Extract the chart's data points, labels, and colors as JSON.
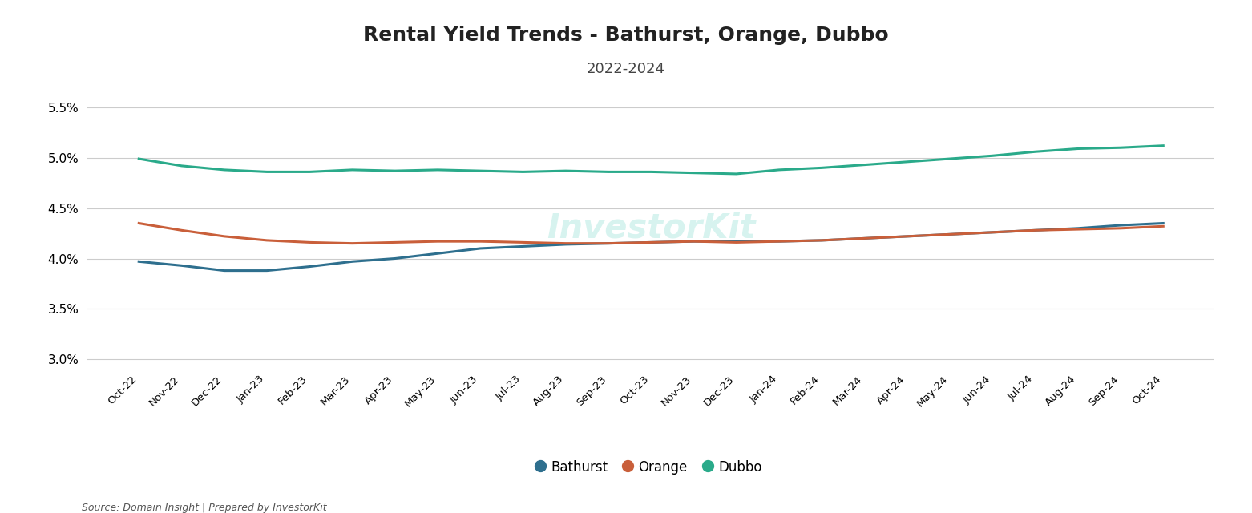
{
  "title": "Rental Yield Trends - Bathurst, Orange, Dubbo",
  "subtitle": "2022-2024",
  "source_text": "Source: Domain Insight | Prepared by InvestorKit",
  "watermark": "InvestorKit",
  "xlabels": [
    "Oct-22",
    "Nov-22",
    "Dec-22",
    "Jan-23",
    "Feb-23",
    "Mar-23",
    "Apr-23",
    "May-23",
    "Jun-23",
    "Jul-23",
    "Aug-23",
    "Sep-23",
    "Oct-23",
    "Nov-23",
    "Dec-23",
    "Jan-24",
    "Feb-24",
    "Mar-24",
    "Apr-24",
    "May-24",
    "Jun-24",
    "Jul-24",
    "Aug-24",
    "Sep-24",
    "Oct-24"
  ],
  "bathurst": [
    3.97,
    3.93,
    3.88,
    3.88,
    3.92,
    3.97,
    4.0,
    4.05,
    4.1,
    4.12,
    4.14,
    4.15,
    4.16,
    4.17,
    4.17,
    4.17,
    4.18,
    4.2,
    4.22,
    4.24,
    4.26,
    4.28,
    4.3,
    4.33,
    4.35
  ],
  "orange": [
    4.35,
    4.28,
    4.22,
    4.18,
    4.16,
    4.15,
    4.16,
    4.17,
    4.17,
    4.16,
    4.15,
    4.15,
    4.16,
    4.17,
    4.16,
    4.17,
    4.18,
    4.2,
    4.22,
    4.24,
    4.26,
    4.28,
    4.29,
    4.3,
    4.32
  ],
  "dubbo": [
    4.99,
    4.92,
    4.88,
    4.86,
    4.86,
    4.88,
    4.87,
    4.88,
    4.87,
    4.86,
    4.87,
    4.86,
    4.86,
    4.85,
    4.84,
    4.88,
    4.9,
    4.93,
    4.96,
    4.99,
    5.02,
    5.06,
    5.09,
    5.1,
    5.12
  ],
  "ylim": [
    2.9,
    5.7
  ],
  "yticks": [
    3.0,
    3.5,
    4.0,
    4.5,
    5.0,
    5.5
  ],
  "colors": {
    "bathurst": "#2e6f8e",
    "orange": "#c95f3a",
    "dubbo": "#2aaa8a"
  },
  "line_width": 2.2,
  "background_color": "#ffffff",
  "grid_color": "#cccccc",
  "legend_entries": [
    "Bathurst",
    "Orange",
    "Dubbo"
  ]
}
